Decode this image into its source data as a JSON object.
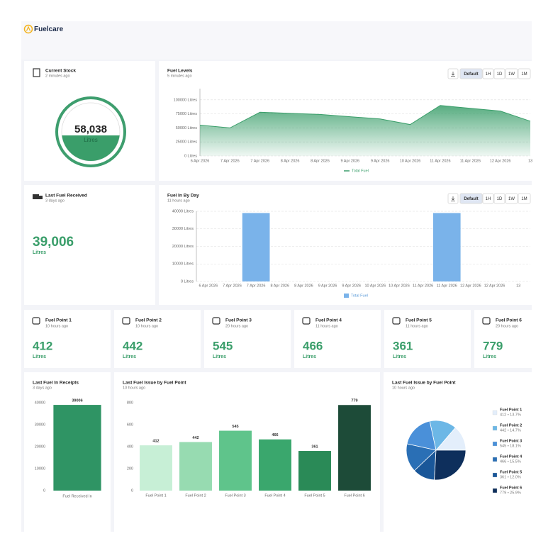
{
  "header": {
    "brand": "Fuelcare"
  },
  "current_stock": {
    "title": "Current Stock",
    "subtitle": "2 minutes ago",
    "value": "58,038",
    "unit": "Litres"
  },
  "last_fuel_received": {
    "title": "Last Fuel Received",
    "subtitle": "3 days ago",
    "value": "39,006",
    "unit": "Litres"
  },
  "controls": [
    "Default",
    "1H",
    "1D",
    "1W",
    "1M"
  ],
  "fuel_points": [
    {
      "name": "Fuel Point 1",
      "subtitle": "10 hours ago",
      "value": 412,
      "unit": "Litres"
    },
    {
      "name": "Fuel Point 2",
      "subtitle": "10 hours ago",
      "value": 442,
      "unit": "Litres"
    },
    {
      "name": "Fuel Point 3",
      "subtitle": "20 hours ago",
      "value": 545,
      "unit": "Litres"
    },
    {
      "name": "Fuel Point 4",
      "subtitle": "11 hours ago",
      "value": 466,
      "unit": "Litres"
    },
    {
      "name": "Fuel Point 5",
      "subtitle": "11 hours ago",
      "value": 361,
      "unit": "Litres"
    },
    {
      "name": "Fuel Point 6",
      "subtitle": "20 hours ago",
      "value": 779,
      "unit": "Litres"
    }
  ],
  "chart_data": [
    {
      "type": "area",
      "title": "Fuel Levels",
      "subtitle": "5 minutes ago",
      "categories": [
        "6 Apr 2026",
        "7 Apr 2026",
        "7 Apr 2026",
        "8 Apr 2026",
        "8 Apr 2026",
        "9 Apr 2026",
        "9 Apr 2026",
        "10 Apr 2026",
        "11 Apr 2026",
        "11 Apr 2026",
        "12 Apr 2026",
        "13"
      ],
      "series": [
        {
          "name": "Total Fuel",
          "color": "#3a9e6a",
          "values": [
            55000,
            50000,
            78000,
            76000,
            74000,
            70000,
            66000,
            56000,
            90000,
            85000,
            80000,
            62000
          ]
        }
      ],
      "ylim": [
        0,
        120000
      ],
      "yticks": [
        {
          "value": 0,
          "label": "0 Litres"
        },
        {
          "value": 25000,
          "label": "25000 Litres"
        },
        {
          "value": 50000,
          "label": "50000 Litres"
        },
        {
          "value": 75000,
          "label": "75000 Litres"
        },
        {
          "value": 100000,
          "label": "100000 Litres"
        }
      ],
      "grid": true
    },
    {
      "type": "bar",
      "title": "Fuel In By Day",
      "subtitle": "11 hours ago",
      "categories": [
        "6 Apr 2026",
        "7 Apr 2026",
        "7 Apr 2026",
        "8 Apr 2026",
        "8 Apr 2026",
        "9 Apr 2026",
        "9 Apr 2026",
        "10 Apr 2026",
        "10 Apr 2026",
        "11 Apr 2026",
        "11 Apr 2026",
        "12 Apr 2026",
        "12 Apr 2026",
        "13"
      ],
      "series": [
        {
          "name": "Total Fuel",
          "color": "#7ab3ea",
          "values": [
            0,
            0,
            39006,
            0,
            0,
            0,
            0,
            0,
            0,
            0,
            39006,
            0,
            0,
            0
          ]
        }
      ],
      "ylim": [
        0,
        40000
      ],
      "yticks": [
        {
          "value": 0,
          "label": "0 Litres"
        },
        {
          "value": 10000,
          "label": "10000 Litres"
        },
        {
          "value": 20000,
          "label": "20000 Litres"
        },
        {
          "value": 30000,
          "label": "30000 Litres"
        },
        {
          "value": 40000,
          "label": "40000 Litres"
        }
      ],
      "grid": true
    },
    {
      "type": "bar",
      "title": "Last Fuel In Receipts",
      "subtitle": "3 days ago",
      "categories": [
        "Fuel Received In"
      ],
      "values": [
        39006
      ],
      "colors": [
        "#2f9464"
      ],
      "ylim": [
        0,
        40000
      ],
      "yticks": [
        0,
        10000,
        20000,
        30000,
        40000
      ],
      "grid": false
    },
    {
      "type": "bar",
      "title": "Last Fuel Issue by Fuel Point",
      "subtitle": "10 hours ago",
      "categories": [
        "Fuel Point 1",
        "Fuel Point 2",
        "Fuel Point 3",
        "Fuel Point 4",
        "Fuel Point 5",
        "Fuel Point 6"
      ],
      "values": [
        412,
        442,
        545,
        466,
        361,
        779
      ],
      "colors": [
        "#c7efd6",
        "#97dbb1",
        "#5fc48b",
        "#3aa76d",
        "#2a8a57",
        "#1d4b38"
      ],
      "ylim": [
        0,
        800
      ],
      "yticks": [
        0,
        200,
        400,
        600,
        800
      ],
      "grid": false
    },
    {
      "type": "pie",
      "title": "Last Fuel Issue by Fuel Point",
      "subtitle": "10 hours ago",
      "categories": [
        "Fuel Point 1",
        "Fuel Point 2",
        "Fuel Point 3",
        "Fuel Point 4",
        "Fuel Point 5",
        "Fuel Point 6"
      ],
      "values": [
        412,
        442,
        545,
        466,
        361,
        779
      ],
      "value_labels": [
        "412 • 13.7%",
        "442 • 14.7%",
        "545 • 18.1%",
        "466 • 15.5%",
        "361 • 12.0%",
        "779 • 25.9%"
      ],
      "colors": [
        "#e3eefb",
        "#6cb7e6",
        "#4a90d9",
        "#2a6fb5",
        "#1a5799",
        "#0e2f5c"
      ]
    }
  ]
}
